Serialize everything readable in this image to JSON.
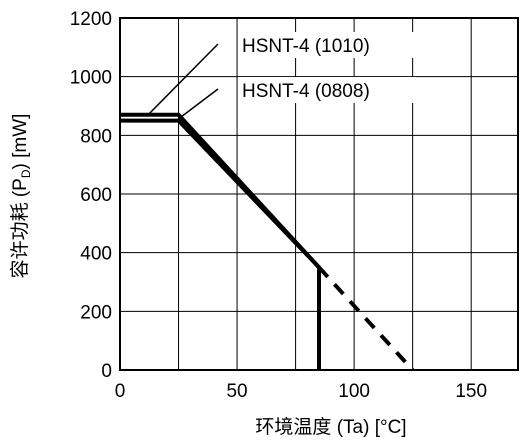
{
  "chart_data": {
    "type": "line",
    "xlabel": "环境温度 (Ta) [°C]",
    "ylabel": "容许功耗 (P",
    "ylabel_sub": "D",
    "ylabel_tail": ") [mW]",
    "xlim": [
      0,
      170
    ],
    "ylim": [
      0,
      1200
    ],
    "x_ticks": [
      0,
      50,
      100,
      150
    ],
    "y_ticks": [
      0,
      200,
      400,
      600,
      800,
      1000,
      1200
    ],
    "grid": true,
    "series": [
      {
        "name": "HSNT-4 (1010)",
        "points": [
          [
            0,
            870
          ],
          [
            25,
            870
          ],
          [
            85,
            350
          ],
          [
            85,
            0
          ]
        ],
        "extrapolation": [
          [
            85,
            350
          ],
          [
            125,
            0
          ]
        ]
      },
      {
        "name": "HSNT-4 (0808)",
        "points": [
          [
            0,
            850
          ],
          [
            25,
            850
          ],
          [
            85,
            350
          ]
        ]
      }
    ],
    "annotations": [
      {
        "text": "HSNT-4 (1010)",
        "target": [
          12,
          870
        ]
      },
      {
        "text": "HSNT-4 (0808)",
        "target": [
          25,
          856
        ]
      }
    ]
  }
}
